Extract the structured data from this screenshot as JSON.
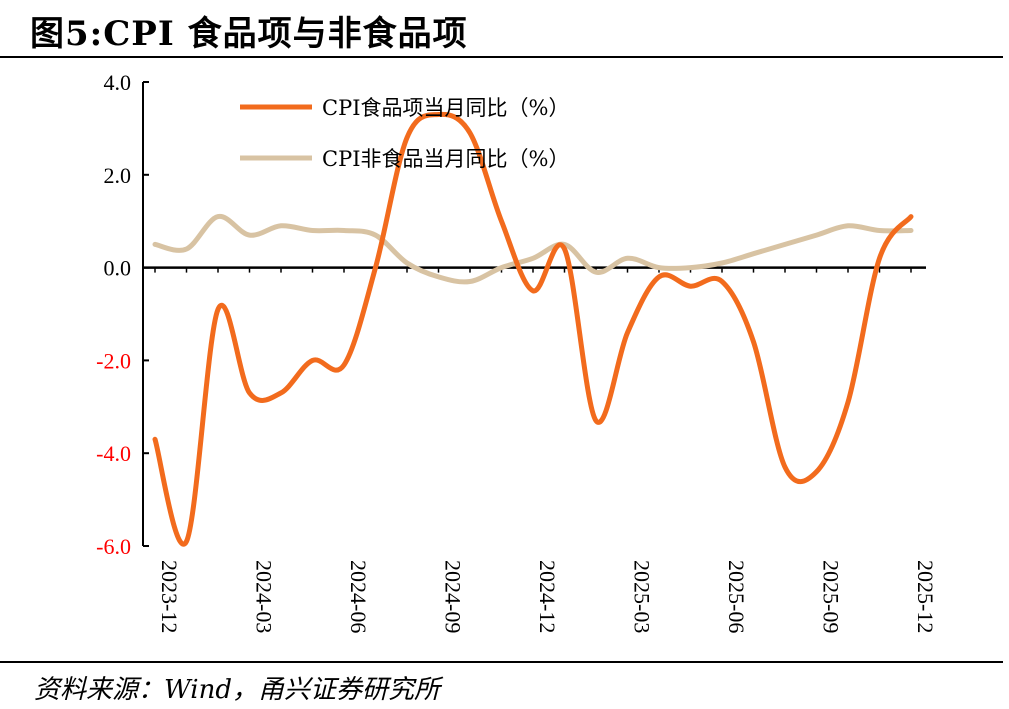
{
  "header": {
    "title": "图5:CPI 食品项与非食品项"
  },
  "footer": {
    "source": "资料来源：Wind，甬兴证券研究所"
  },
  "colors": {
    "food": "#f26b1d",
    "nonfood": "#d8c3a3",
    "negative_tick": "#ff0000",
    "axis": "#000000"
  },
  "chart_data": {
    "type": "line",
    "title": "",
    "xlabel": "",
    "ylabel": "",
    "ylim": [
      -6,
      4
    ],
    "y_ticks": [
      "4.0",
      "2.0",
      "0.0",
      "-2.0",
      "-4.0",
      "-6.0"
    ],
    "x_tick_labels": [
      "2023-12",
      "2024-03",
      "2024-06",
      "2024-09",
      "2024-12",
      "2025-03",
      "2025-06",
      "2025-09",
      "2025-12"
    ],
    "x": [
      "2023-12",
      "2024-01",
      "2024-02",
      "2024-03",
      "2024-04",
      "2024-05",
      "2024-06",
      "2024-07",
      "2024-08",
      "2024-09",
      "2024-10",
      "2024-11",
      "2024-12",
      "2025-01",
      "2025-02",
      "2025-03",
      "2025-04",
      "2025-05",
      "2025-06",
      "2025-07",
      "2025-08",
      "2025-09",
      "2025-10",
      "2025-11",
      "2025-12"
    ],
    "legend_position": "top-center",
    "series": [
      {
        "name": "CPI食品项当月同比（%）",
        "values": [
          -3.7,
          -5.9,
          -0.9,
          -2.7,
          -2.7,
          -2.0,
          -2.1,
          0.0,
          2.8,
          3.3,
          2.9,
          1.0,
          -0.5,
          0.4,
          -3.3,
          -1.4,
          -0.2,
          -0.4,
          -0.3,
          -1.6,
          -4.3,
          -4.4,
          -2.9,
          0.2,
          1.1
        ]
      },
      {
        "name": "CPI非食品当月同比（%）",
        "values": [
          0.5,
          0.4,
          1.1,
          0.7,
          0.9,
          0.8,
          0.8,
          0.7,
          0.1,
          -0.2,
          -0.3,
          0.0,
          0.2,
          0.5,
          -0.1,
          0.2,
          0.0,
          0.0,
          0.1,
          0.3,
          0.5,
          0.7,
          0.9,
          0.8,
          0.8
        ]
      }
    ]
  }
}
